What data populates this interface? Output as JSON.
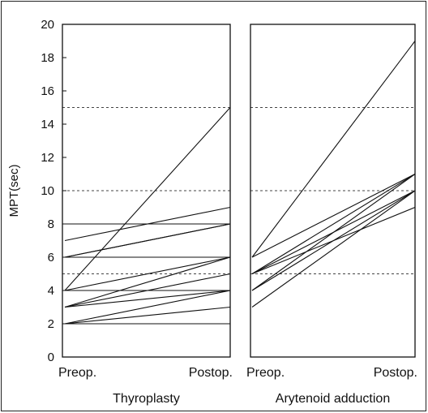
{
  "chart_data": {
    "type": "line",
    "ylabel": "MPT(sec)",
    "ylim": [
      0,
      20
    ],
    "yticks": [
      0,
      2,
      4,
      6,
      8,
      10,
      12,
      14,
      16,
      18,
      20
    ],
    "reference_lines": [
      5,
      10,
      15
    ],
    "categories": [
      "Preop.",
      "Postop."
    ],
    "panels": [
      {
        "name": "Thyroplasty",
        "pairs": [
          [
            2,
            2
          ],
          [
            2,
            3
          ],
          [
            2,
            4
          ],
          [
            3,
            4
          ],
          [
            3,
            5
          ],
          [
            3,
            6
          ],
          [
            4,
            4
          ],
          [
            4,
            6
          ],
          [
            4,
            15
          ],
          [
            6,
            6
          ],
          [
            6,
            8
          ],
          [
            6,
            8
          ],
          [
            7,
            9
          ],
          [
            8,
            8
          ]
        ]
      },
      {
        "name": "Arytenoid adduction",
        "pairs": [
          [
            3,
            10
          ],
          [
            4,
            10
          ],
          [
            4,
            11
          ],
          [
            5,
            9
          ],
          [
            5,
            10
          ],
          [
            5,
            11
          ],
          [
            6,
            11
          ],
          [
            6,
            19
          ]
        ]
      }
    ]
  }
}
